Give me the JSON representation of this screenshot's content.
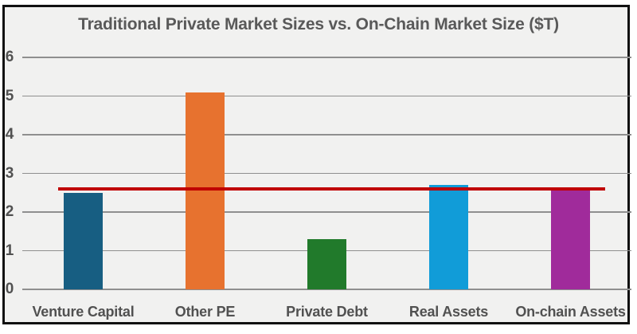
{
  "chart_data": {
    "type": "bar",
    "title": "Traditional Private Market Sizes vs. On-Chain Market Size ($T)",
    "categories": [
      "Venture Capital",
      "Other PE",
      "Private Debt",
      "Real Assets",
      "On-chain Assets"
    ],
    "values": [
      2.5,
      5.1,
      1.3,
      2.7,
      2.6
    ],
    "bar_colors": [
      "#175e82",
      "#e7722f",
      "#217a2b",
      "#119cd8",
      "#a02b9b"
    ],
    "y_ticks": [
      0,
      1,
      2,
      3,
      4,
      5,
      6
    ],
    "ylim": [
      0,
      6
    ],
    "xlabel": "",
    "ylabel": "",
    "grid": true,
    "legend": "none",
    "reference_line": {
      "value": 2.6,
      "color": "#c00000"
    }
  },
  "colors": {
    "plot_background": "#f1f1f0",
    "frame_border": "#111111",
    "gridline": "#8f8f8f",
    "text": "#515151",
    "title_text": "#595959"
  }
}
